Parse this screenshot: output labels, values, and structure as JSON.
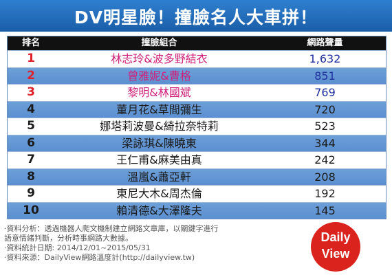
{
  "title": "DV明星臉！撞臉名人大車拼！",
  "headers": {
    "rank": "排名",
    "pair": "撞臉組合",
    "volume": "網路聲量"
  },
  "chart_data": {
    "type": "table",
    "columns": [
      "排名",
      "撞臉組合",
      "網路聲量"
    ],
    "rows": [
      {
        "rank": "1",
        "pair": "林志玲&波多野結衣",
        "volume": "1,632",
        "value": 1632
      },
      {
        "rank": "2",
        "pair": "曾雅妮&曹格",
        "volume": "851",
        "value": 851
      },
      {
        "rank": "3",
        "pair": "黎明&林國斌",
        "volume": "769",
        "value": 769
      },
      {
        "rank": "4",
        "pair": "董月花&草間彌生",
        "volume": "720",
        "value": 720
      },
      {
        "rank": "5",
        "pair": "娜塔莉波曼&綺拉奈特莉",
        "volume": "523",
        "value": 523
      },
      {
        "rank": "6",
        "pair": "梁詠琪&陳曉東",
        "volume": "344",
        "value": 344
      },
      {
        "rank": "7",
        "pair": "王仁甫&麻美由真",
        "volume": "242",
        "value": 242
      },
      {
        "rank": "8",
        "pair": "溫嵐&蕭亞軒",
        "volume": "208",
        "value": 208
      },
      {
        "rank": "9",
        "pair": "東尼大木&周杰倫",
        "volume": "192",
        "value": 192
      },
      {
        "rank": "10",
        "pair": "賴清德&大澤隆夫",
        "volume": "145",
        "value": 145
      }
    ]
  },
  "notes": [
    "‧資料分析：透過機器人爬文機制建立網路文章庫，以關鍵字進行",
    "  語意情緒判斷，分析時事網路大數據。",
    "‧資料統計日期: 2014/12/01~2015/05/31",
    "‧資料來源：DailyView網路溫度計(http://dailyview.tw)"
  ],
  "logo": {
    "line1": "Daily",
    "line2": "View"
  },
  "colors": {
    "title_bg": "#1a5ea8",
    "row_blue": "#5b8fcf",
    "top_rank": "#e0202a",
    "logo": "#d9231c"
  }
}
